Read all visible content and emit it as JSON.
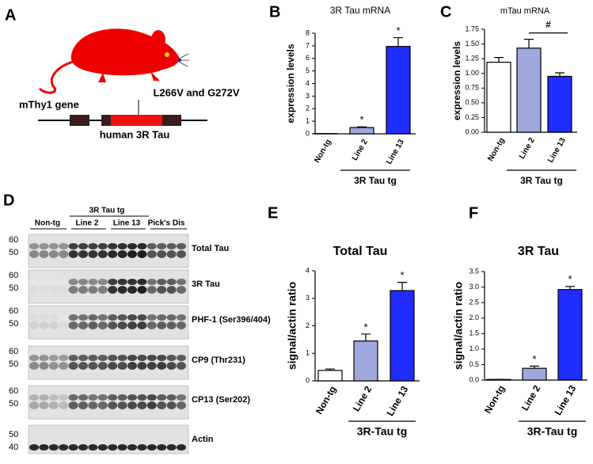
{
  "panel_labels": [
    "A",
    "B",
    "C",
    "D",
    "E",
    "F"
  ],
  "diagram": {
    "gene_label": "mThy1 gene",
    "mutation_label": "L266V and G272V",
    "transgene_label": "human 3R Tau"
  },
  "blot": {
    "group_label": "3R Tau tg",
    "lanes": [
      "Non-tg",
      "Line 2",
      "Line 13",
      "Pick's Dis"
    ],
    "rows": [
      {
        "label": "Total Tau",
        "markers": [
          60,
          50
        ]
      },
      {
        "label": "3R Tau",
        "markers": [
          60,
          50
        ]
      },
      {
        "label": "PHF-1 (Ser396/404)",
        "markers": [
          60,
          50
        ]
      },
      {
        "label": "CP9 (Thr231)",
        "markers": [
          60,
          50
        ]
      },
      {
        "label": "CP13 (Ser202)",
        "markers": [
          60,
          50
        ]
      },
      {
        "label": "Actin",
        "markers": [
          50,
          40
        ]
      }
    ]
  },
  "chart_data": [
    {
      "type": "bar",
      "title": "3R Tau mRNA",
      "ylabel": "expression levels",
      "categories": [
        "Non-tg",
        "Line 2",
        "Line 13"
      ],
      "values": [
        0.02,
        0.5,
        6.95
      ],
      "errors": [
        0,
        0.05,
        0.7
      ],
      "colors": [
        "#ffffff",
        "#9ea8dc",
        "#1f2dff"
      ],
      "significance": [
        null,
        "*",
        "*"
      ],
      "group_label": "3R Tau tg",
      "ylim": [
        0,
        8
      ],
      "yticks": [
        0,
        1,
        2,
        3,
        4,
        5,
        6,
        7,
        8
      ]
    },
    {
      "type": "bar",
      "title": "mTau mRNA",
      "ylabel": "expression levels",
      "categories": [
        "Non-tg",
        "Line 2",
        "Line 13"
      ],
      "values": [
        1.19,
        1.43,
        0.95
      ],
      "errors": [
        0.08,
        0.15,
        0.06
      ],
      "colors": [
        "#ffffff",
        "#9ea8dc",
        "#1f2dff"
      ],
      "bracket_label": "#",
      "group_label": "3R Tau tg",
      "ylim": [
        0,
        1.75
      ],
      "yticks": [
        {
          "value": 0,
          "label": "0.00"
        },
        {
          "value": 0.25,
          "label": "0.25"
        },
        {
          "value": 0.5,
          "label": "0.50"
        },
        {
          "value": 0.75,
          "label": "0.75"
        },
        {
          "value": 1,
          "label": "1.00"
        },
        {
          "value": 1.25,
          "label": "1.25"
        },
        {
          "value": 1.5,
          "label": "1.50"
        },
        {
          "value": 1.75,
          "label": "1.75"
        }
      ]
    },
    {
      "type": "bar",
      "title": "Total Tau",
      "ylabel": "signal/actin ratio",
      "categories": [
        "Non-tg",
        "Line 2",
        "Line 13"
      ],
      "values": [
        0.38,
        1.45,
        3.28
      ],
      "errors": [
        0.05,
        0.25,
        0.3
      ],
      "colors": [
        "#ffffff",
        "#9ea8dc",
        "#1f2dff"
      ],
      "significance": [
        null,
        "*",
        "*"
      ],
      "group_label": "3R-Tau tg",
      "ylim": [
        0,
        4
      ],
      "yticks": [
        0,
        1,
        2,
        3,
        4
      ]
    },
    {
      "type": "bar",
      "title": "3R Tau",
      "ylabel": "signal/actin ratio",
      "categories": [
        "Non-tg",
        "Line 2",
        "Line 13"
      ],
      "values": [
        0.02,
        0.38,
        2.92
      ],
      "errors": [
        0,
        0.07,
        0.1
      ],
      "colors": [
        "#ffffff",
        "#9ea8dc",
        "#1f2dff"
      ],
      "significance": [
        null,
        "*",
        "*"
      ],
      "group_label": "3R-Tau tg",
      "ylim": [
        0,
        3.5
      ],
      "yticks": [
        {
          "value": 0,
          "label": "0.0"
        },
        {
          "value": 0.5,
          "label": "0.5"
        },
        {
          "value": 1,
          "label": "1.0"
        },
        {
          "value": 1.5,
          "label": "1.5"
        },
        {
          "value": 2,
          "label": "2.0"
        },
        {
          "value": 2.5,
          "label": "2.5"
        },
        {
          "value": 3,
          "label": "3.0"
        },
        {
          "value": 3.5,
          "label": "3.5"
        }
      ]
    }
  ]
}
